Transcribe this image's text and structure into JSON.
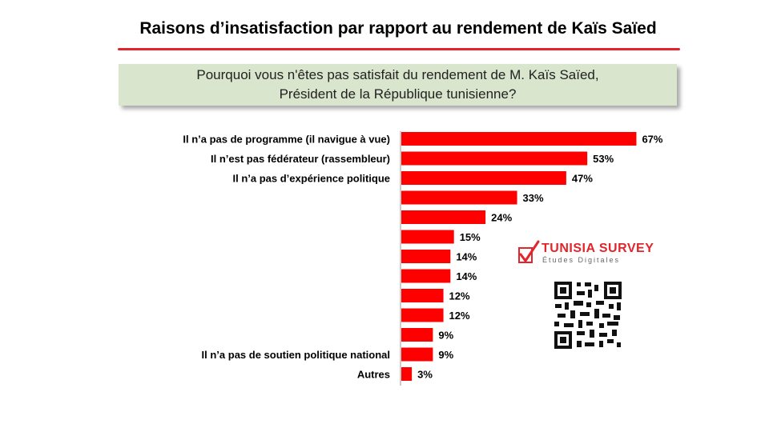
{
  "header": {
    "title": "Raisons d’insatisfaction par rapport au rendement  de Kaïs Saïed",
    "question_line1": "Pourquoi vous n'êtes pas satisfait du rendement de M. Kaïs Saïed,",
    "question_line2": "Président de la République tunisienne?"
  },
  "logo": {
    "name": "TUNISIA SURVEY",
    "tagline": "Études Digitales",
    "brand_color": "#e3242b"
  },
  "qr_icon": "qr-code-icon",
  "colors": {
    "bar": "#ff0000",
    "title_line": "#e3242b",
    "question_bg": "#d9e5cc"
  },
  "chart_data": {
    "type": "bar",
    "orientation": "horizontal",
    "value_suffix": "%",
    "xlim": [
      0,
      100
    ],
    "grid": false,
    "categories": [
      "Il n’a pas de programme (il navigue à vue)",
      "Il n’est pas fédérateur (rassembleur)",
      "Il n’a pas d’expérience politique",
      "",
      "",
      "",
      "",
      "",
      "",
      "",
      "",
      "Il n’a pas de soutien politique national",
      "Autres"
    ],
    "values": [
      67,
      53,
      47,
      33,
      24,
      15,
      14,
      14,
      12,
      12,
      9,
      9,
      3
    ],
    "value_labels": [
      "67%",
      "53%",
      "47%",
      "33%",
      "24%",
      "15%",
      "14%",
      "14%",
      "12%",
      "12%",
      "9%",
      "9%",
      "3%"
    ]
  }
}
